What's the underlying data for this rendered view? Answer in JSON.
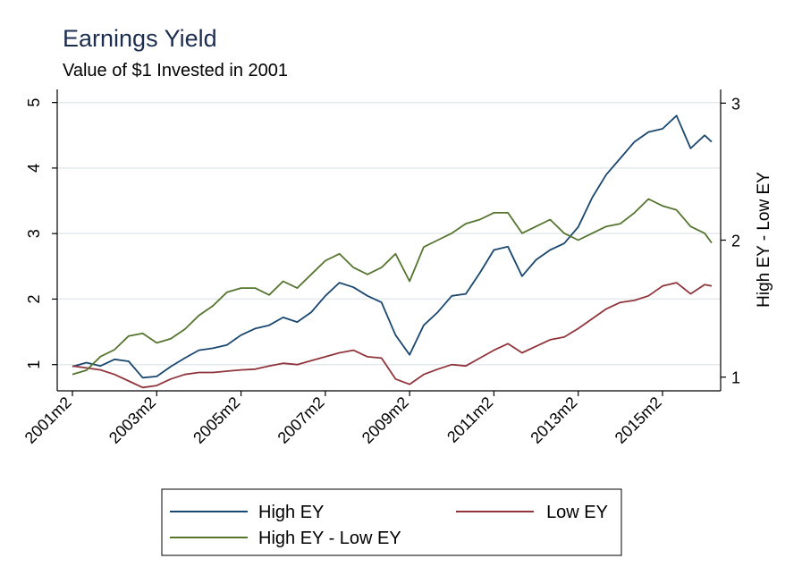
{
  "chart_data": {
    "type": "line",
    "title": "Earnings Yield",
    "subtitle": "Value of $1 Invested in 2001",
    "xlabel": "",
    "ylabel_left": "",
    "ylabel_right": "High EY - Low EY",
    "x_ticks": [
      "2001m2",
      "2003m2",
      "2005m2",
      "2007m2",
      "2009m2",
      "2011m2",
      "2013m2",
      "2015m2"
    ],
    "x_range": [
      "2001m2",
      "2016m4"
    ],
    "y_left_ticks": [
      1,
      2,
      3,
      4,
      5
    ],
    "y_left_range": [
      0.6,
      5.2
    ],
    "y_right_ticks": [
      1,
      2,
      3
    ],
    "y_right_range": [
      0.9,
      3.1
    ],
    "grid": "horizontal",
    "legend_position": "bottom",
    "colors": {
      "title": "#1c2e4f",
      "axis": "#000000",
      "grid": "#e3eaee"
    },
    "series": [
      {
        "name": "High EY",
        "axis": "left",
        "color": "#1a476f",
        "points": [
          [
            "2001m2",
            0.97
          ],
          [
            "2001m6",
            1.03
          ],
          [
            "2001m10",
            0.98
          ],
          [
            "2002m2",
            1.08
          ],
          [
            "2002m6",
            1.05
          ],
          [
            "2002m10",
            0.8
          ],
          [
            "2003m2",
            0.82
          ],
          [
            "2003m6",
            0.97
          ],
          [
            "2003m10",
            1.1
          ],
          [
            "2004m2",
            1.22
          ],
          [
            "2004m6",
            1.25
          ],
          [
            "2004m10",
            1.3
          ],
          [
            "2005m2",
            1.45
          ],
          [
            "2005m6",
            1.55
          ],
          [
            "2005m10",
            1.6
          ],
          [
            "2006m2",
            1.72
          ],
          [
            "2006m6",
            1.65
          ],
          [
            "2006m10",
            1.8
          ],
          [
            "2007m2",
            2.05
          ],
          [
            "2007m6",
            2.25
          ],
          [
            "2007m10",
            2.18
          ],
          [
            "2008m2",
            2.05
          ],
          [
            "2008m6",
            1.95
          ],
          [
            "2008m10",
            1.45
          ],
          [
            "2009m2",
            1.15
          ],
          [
            "2009m6",
            1.6
          ],
          [
            "2009m10",
            1.8
          ],
          [
            "2010m2",
            2.05
          ],
          [
            "2010m6",
            2.08
          ],
          [
            "2010m10",
            2.4
          ],
          [
            "2011m2",
            2.75
          ],
          [
            "2011m6",
            2.8
          ],
          [
            "2011m10",
            2.35
          ],
          [
            "2012m2",
            2.6
          ],
          [
            "2012m6",
            2.75
          ],
          [
            "2012m10",
            2.85
          ],
          [
            "2013m2",
            3.1
          ],
          [
            "2013m6",
            3.55
          ],
          [
            "2013m10",
            3.9
          ],
          [
            "2014m2",
            4.15
          ],
          [
            "2014m6",
            4.4
          ],
          [
            "2014m10",
            4.55
          ],
          [
            "2015m2",
            4.6
          ],
          [
            "2015m6",
            4.8
          ],
          [
            "2015m10",
            4.3
          ],
          [
            "2016m2",
            4.5
          ],
          [
            "2016m4",
            4.4
          ]
        ]
      },
      {
        "name": "Low EY",
        "axis": "left",
        "color": "#90353b",
        "points": [
          [
            "2001m2",
            0.98
          ],
          [
            "2001m6",
            0.95
          ],
          [
            "2001m10",
            0.92
          ],
          [
            "2002m2",
            0.85
          ],
          [
            "2002m6",
            0.75
          ],
          [
            "2002m10",
            0.65
          ],
          [
            "2003m2",
            0.68
          ],
          [
            "2003m6",
            0.78
          ],
          [
            "2003m10",
            0.85
          ],
          [
            "2004m2",
            0.88
          ],
          [
            "2004m6",
            0.88
          ],
          [
            "2004m10",
            0.9
          ],
          [
            "2005m2",
            0.92
          ],
          [
            "2005m6",
            0.93
          ],
          [
            "2005m10",
            0.98
          ],
          [
            "2006m2",
            1.02
          ],
          [
            "2006m6",
            1.0
          ],
          [
            "2006m10",
            1.06
          ],
          [
            "2007m2",
            1.12
          ],
          [
            "2007m6",
            1.18
          ],
          [
            "2007m10",
            1.22
          ],
          [
            "2008m2",
            1.12
          ],
          [
            "2008m6",
            1.1
          ],
          [
            "2008m10",
            0.78
          ],
          [
            "2009m2",
            0.7
          ],
          [
            "2009m6",
            0.85
          ],
          [
            "2009m10",
            0.93
          ],
          [
            "2010m2",
            1.0
          ],
          [
            "2010m6",
            0.98
          ],
          [
            "2010m10",
            1.1
          ],
          [
            "2011m2",
            1.22
          ],
          [
            "2011m6",
            1.32
          ],
          [
            "2011m10",
            1.18
          ],
          [
            "2012m2",
            1.28
          ],
          [
            "2012m6",
            1.38
          ],
          [
            "2012m10",
            1.42
          ],
          [
            "2013m2",
            1.55
          ],
          [
            "2013m6",
            1.7
          ],
          [
            "2013m10",
            1.85
          ],
          [
            "2014m2",
            1.95
          ],
          [
            "2014m6",
            1.98
          ],
          [
            "2014m10",
            2.05
          ],
          [
            "2015m2",
            2.2
          ],
          [
            "2015m6",
            2.25
          ],
          [
            "2015m10",
            2.08
          ],
          [
            "2016m2",
            2.22
          ],
          [
            "2016m4",
            2.2
          ]
        ]
      },
      {
        "name": "High EY - Low EY",
        "axis": "right",
        "color": "#55752f",
        "points": [
          [
            "2001m2",
            1.02
          ],
          [
            "2001m6",
            1.05
          ],
          [
            "2001m10",
            1.15
          ],
          [
            "2002m2",
            1.2
          ],
          [
            "2002m6",
            1.3
          ],
          [
            "2002m10",
            1.32
          ],
          [
            "2003m2",
            1.25
          ],
          [
            "2003m6",
            1.28
          ],
          [
            "2003m10",
            1.35
          ],
          [
            "2004m2",
            1.45
          ],
          [
            "2004m6",
            1.52
          ],
          [
            "2004m10",
            1.62
          ],
          [
            "2005m2",
            1.65
          ],
          [
            "2005m6",
            1.65
          ],
          [
            "2005m10",
            1.6
          ],
          [
            "2006m2",
            1.7
          ],
          [
            "2006m6",
            1.65
          ],
          [
            "2006m10",
            1.75
          ],
          [
            "2007m2",
            1.85
          ],
          [
            "2007m6",
            1.9
          ],
          [
            "2007m10",
            1.8
          ],
          [
            "2008m2",
            1.75
          ],
          [
            "2008m6",
            1.8
          ],
          [
            "2008m10",
            1.9
          ],
          [
            "2009m2",
            1.7
          ],
          [
            "2009m6",
            1.95
          ],
          [
            "2009m10",
            2.0
          ],
          [
            "2010m2",
            2.05
          ],
          [
            "2010m6",
            2.12
          ],
          [
            "2010m10",
            2.15
          ],
          [
            "2011m2",
            2.2
          ],
          [
            "2011m6",
            2.2
          ],
          [
            "2011m10",
            2.05
          ],
          [
            "2012m2",
            2.1
          ],
          [
            "2012m6",
            2.15
          ],
          [
            "2012m10",
            2.05
          ],
          [
            "2013m2",
            2.0
          ],
          [
            "2013m6",
            2.05
          ],
          [
            "2013m10",
            2.1
          ],
          [
            "2014m2",
            2.12
          ],
          [
            "2014m6",
            2.2
          ],
          [
            "2014m10",
            2.3
          ],
          [
            "2015m2",
            2.25
          ],
          [
            "2015m6",
            2.22
          ],
          [
            "2015m10",
            2.1
          ],
          [
            "2016m2",
            2.05
          ],
          [
            "2016m4",
            1.98
          ]
        ]
      }
    ]
  }
}
